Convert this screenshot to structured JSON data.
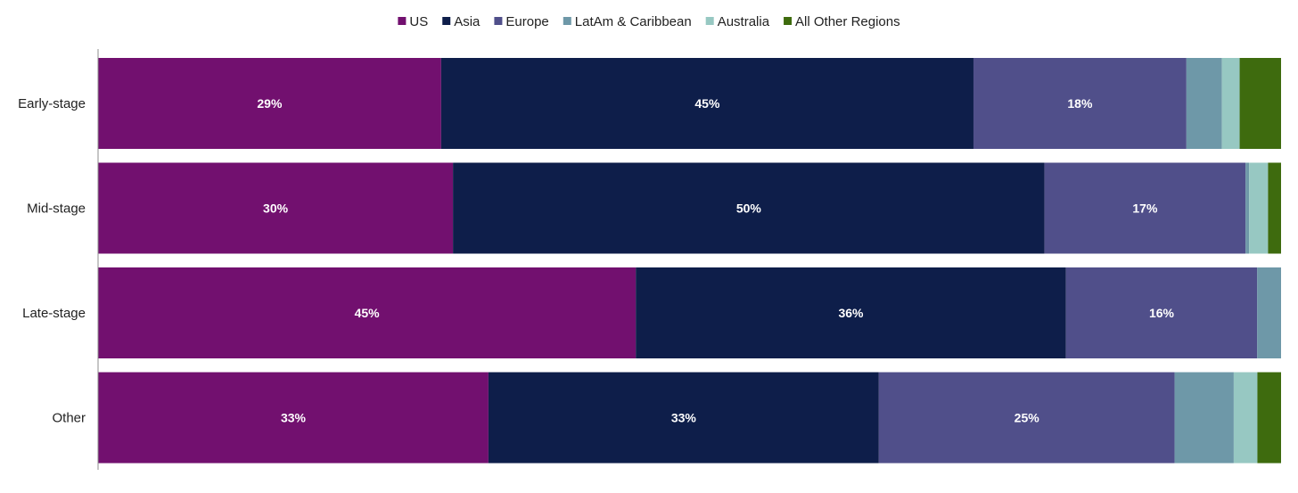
{
  "chart_data": {
    "type": "bar",
    "orientation": "horizontal",
    "stacked": true,
    "normalized_to_percent": true,
    "title": "",
    "xlabel": "",
    "ylabel": "",
    "xlim": [
      0,
      100
    ],
    "grid": false,
    "legend_position": "top-center",
    "categories": [
      "Early-stage",
      "Mid-stage",
      "Late-stage",
      "Other"
    ],
    "series": [
      {
        "name": "US",
        "color": "#72106f",
        "values": [
          29,
          30,
          45,
          33
        ],
        "labels": [
          "29%",
          "30%",
          "45%",
          "33%"
        ]
      },
      {
        "name": "Asia",
        "color": "#0e1e4a",
        "values": [
          45,
          50,
          36,
          33
        ],
        "labels": [
          "45%",
          "50%",
          "36%",
          "33%"
        ]
      },
      {
        "name": "Europe",
        "color": "#504f8a",
        "values": [
          18,
          17,
          16,
          25
        ],
        "labels": [
          "18%",
          "17%",
          "16%",
          "25%"
        ]
      },
      {
        "name": "LatAm & Caribbean",
        "color": "#6e98a8",
        "values": [
          3,
          0.3,
          2,
          5
        ],
        "labels": [
          "",
          "",
          "",
          ""
        ]
      },
      {
        "name": "Australia",
        "color": "#97c8c2",
        "values": [
          1.5,
          1.6,
          0,
          2
        ],
        "labels": [
          "",
          "",
          "",
          ""
        ]
      },
      {
        "name": "All Other Regions",
        "color": "#3e6b0e",
        "values": [
          3.5,
          1.1,
          0,
          2
        ],
        "labels": [
          "",
          "",
          "",
          ""
        ]
      }
    ]
  }
}
